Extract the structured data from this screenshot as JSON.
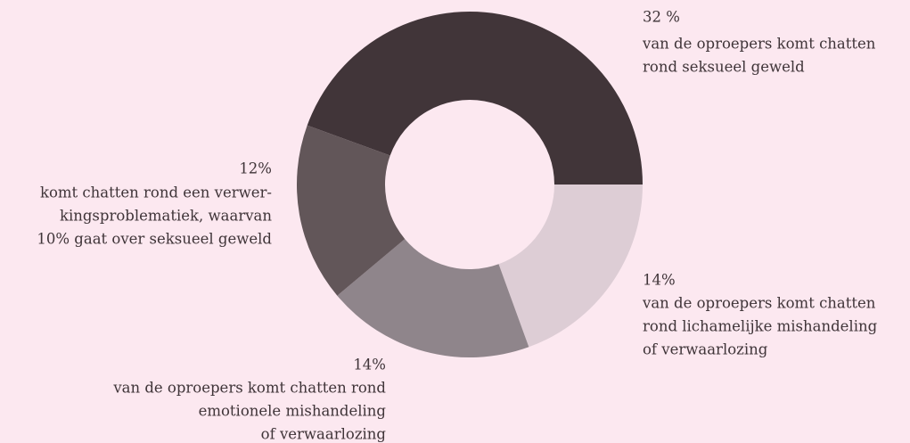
{
  "chart_data": {
    "type": "donut",
    "categories": [
      [
        "van de oproepers komt chatten",
        "rond seksueel geweld"
      ],
      [
        "van de oproepers komt chatten",
        "rond lichamelijke mishandeling",
        "of verwaarlozing"
      ],
      [
        "van de oproepers komt chatten rond",
        "emotionele mishandeling",
        "of verwaarlozing"
      ],
      [
        "komt chatten rond een verwer-",
        "kingsproblematiek, waarvan",
        "10% gaat over seksueel geweld"
      ]
    ],
    "values": [
      32,
      14,
      14,
      12
    ],
    "value_labels": [
      "32 %",
      "14%",
      "14%",
      "12%"
    ],
    "colors": [
      "#413539",
      "#ddcdd5",
      "#8f858b",
      "#625659"
    ]
  }
}
